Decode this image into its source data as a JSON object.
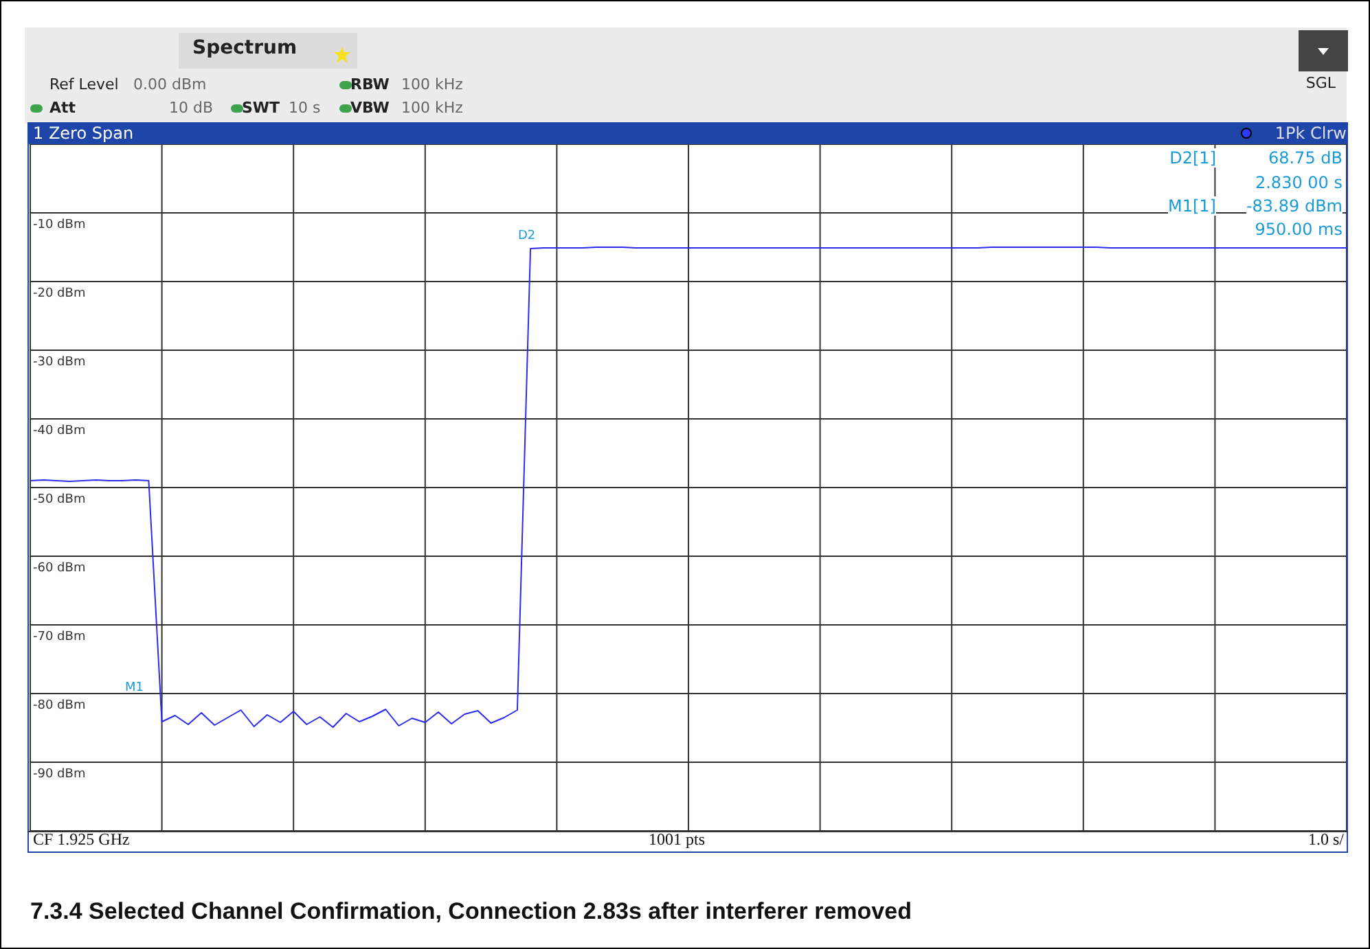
{
  "chart_data": {
    "type": "line",
    "title": "7.3.4 Selected Channel Confirmation, Connection 2.83s after interferer removed",
    "annotations": [
      "Spectrum",
      "Ref Level",
      "0.00 dBm",
      "Att",
      "10 dB",
      "SWT",
      "10 s",
      "RBW",
      "100 kHz",
      "VBW",
      "100 kHz",
      "SGL",
      "1 Zero Span",
      "1Pk Clrw",
      "D2[1]",
      "68.75 dB",
      "2.830 00 s",
      "M1[1]",
      "-83.89 dBm",
      "950.00 ms",
      "CF 1.925 GHz",
      "1001 pts",
      "1.0 s/",
      "M1",
      "D2"
    ],
    "categories": [
      null,
      null,
      null,
      null,
      null,
      null,
      null,
      null,
      null,
      null,
      null,
      null,
      null,
      null,
      null,
      null,
      null,
      null,
      null,
      null,
      null,
      null,
      null,
      null,
      null,
      null,
      null,
      null,
      null,
      null,
      null,
      null,
      null,
      null,
      null,
      null,
      null,
      null,
      null,
      null,
      null,
      null,
      null,
      null,
      null,
      null,
      null,
      null,
      null,
      null,
      null,
      null,
      null,
      null,
      null,
      null,
      null,
      null,
      null,
      null,
      null,
      null,
      null,
      null,
      null,
      null,
      null,
      null,
      null,
      null,
      null,
      null,
      null,
      null,
      null,
      null,
      null,
      null,
      null,
      null,
      null,
      null,
      null,
      null,
      null,
      null,
      null,
      null,
      null,
      null,
      null,
      null,
      null,
      null,
      null,
      null,
      null,
      null,
      null,
      null,
      null
    ],
    "ylim": [
      -100,
      0
    ],
    "yticks": [
      {
        "value": 0,
        "label": null
      },
      {
        "value": -10,
        "label": "-10 dBm"
      },
      {
        "value": -20,
        "label": "-20 dBm"
      },
      {
        "value": -30,
        "label": "-30 dBm"
      },
      {
        "value": -40,
        "label": "-40 dBm"
      },
      {
        "value": -50,
        "label": "-50 dBm"
      },
      {
        "value": -60,
        "label": "-60 dBm"
      },
      {
        "value": -70,
        "label": "-70 dBm"
      },
      {
        "value": -80,
        "label": "-80 dBm"
      },
      {
        "value": -90,
        "label": "-90 dBm"
      },
      {
        "value": -100,
        "label": null
      }
    ],
    "grid": true,
    "marker": "none",
    "line_style": "solid",
    "tick_labels": "y",
    "series": [
      {
        "color": "#2b2bf0",
        "values": [
          -49,
          -48.9,
          -49,
          -49.1,
          -49,
          -48.9,
          -49,
          -49,
          -48.9,
          -49,
          -84.1,
          -83.2,
          -84.5,
          -82.8,
          -84.6,
          -83.5,
          -82.4,
          -84.8,
          -83.1,
          -84.2,
          -82.6,
          -84.5,
          -83.4,
          -84.9,
          -82.9,
          -84.1,
          -83.3,
          -82.3,
          -84.7,
          -83.6,
          -84.2,
          -82.7,
          -84.4,
          -83,
          -82.5,
          -84.3,
          -83.5,
          -82.4,
          -15.2,
          -15.1,
          -15.1,
          -15.1,
          -15.1,
          -15,
          -15,
          -15,
          -15.1,
          -15.1,
          -15.1,
          -15.1,
          -15.1,
          -15.1,
          -15.1,
          -15.1,
          -15.1,
          -15.1,
          -15.1,
          -15.1,
          -15.1,
          -15.1,
          -15.1,
          -15.1,
          -15.1,
          -15.1,
          -15.1,
          -15.1,
          -15.1,
          -15.1,
          -15.1,
          -15.1,
          -15.1,
          -15.1,
          -15.1,
          -15,
          -15,
          -15,
          -15,
          -15,
          -15,
          -15,
          -15,
          -15,
          -15.1,
          -15.1,
          -15.1,
          -15.1,
          -15.1,
          -15.1,
          -15.1,
          -15.1,
          -15.1,
          -15.1,
          -15.1,
          -15.1,
          -15.1,
          -15.1,
          -15.1,
          -15.1,
          -15.1,
          -15.1,
          -15.1
        ]
      }
    ]
  }
}
